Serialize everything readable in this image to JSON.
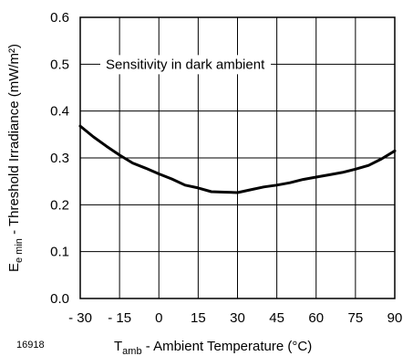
{
  "chart_data": {
    "type": "line",
    "annotation": "Sensitivity in dark ambient",
    "figure_id": "16918",
    "xlabel": {
      "main": "T",
      "sub": "amb",
      "rest": " - Ambient Temperature (°C)"
    },
    "ylabel": {
      "main": "E",
      "sub": "e min",
      "rest": " - Threshold Irradiance (mW/m²)"
    },
    "xlim": [
      -30,
      90
    ],
    "ylim": [
      0.0,
      0.6
    ],
    "x_ticks": [
      -30,
      -15,
      0,
      15,
      30,
      45,
      60,
      75,
      90
    ],
    "x_tick_labels": [
      "- 30",
      "- 15",
      "0",
      "15",
      "30",
      "45",
      "60",
      "75",
      "90"
    ],
    "y_ticks": [
      0.0,
      0.1,
      0.2,
      0.3,
      0.4,
      0.5,
      0.6
    ],
    "y_tick_labels": [
      "0.0",
      "0.1",
      "0.2",
      "0.3",
      "0.4",
      "0.5",
      "0.6"
    ],
    "grid": true,
    "series": [
      {
        "x": [
          -30,
          -25,
          -20,
          -15,
          -10,
          -5,
          0,
          5,
          10,
          15,
          20,
          25,
          30,
          35,
          40,
          45,
          50,
          55,
          60,
          65,
          70,
          75,
          80,
          85,
          90
        ],
        "y": [
          0.368,
          0.345,
          0.325,
          0.306,
          0.289,
          0.278,
          0.266,
          0.255,
          0.242,
          0.236,
          0.228,
          0.227,
          0.226,
          0.232,
          0.238,
          0.242,
          0.247,
          0.254,
          0.259,
          0.264,
          0.269,
          0.276,
          0.284,
          0.298,
          0.315
        ]
      }
    ]
  }
}
